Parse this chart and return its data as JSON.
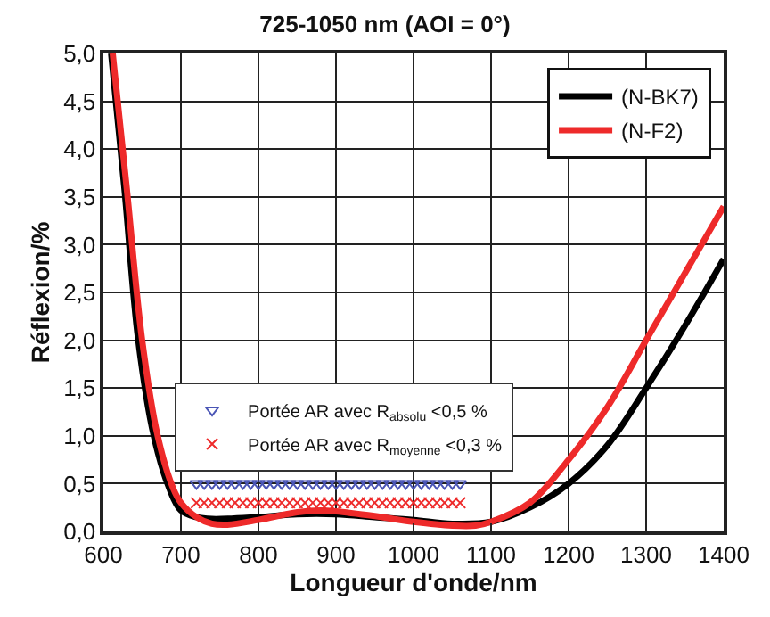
{
  "chart_data": {
    "type": "line",
    "title": "725-1050 nm (AOI = 0°)",
    "xlabel": "Longueur d'onde/nm",
    "ylabel": "Réflexion/%",
    "xlim": [
      600,
      1400
    ],
    "xticks": [
      600,
      700,
      800,
      900,
      1000,
      1100,
      1200,
      1300,
      1400
    ],
    "ylim": [
      0,
      5
    ],
    "yticks": [
      {
        "value": 0,
        "label": "0,0"
      },
      {
        "value": 0.5,
        "label": "0,5"
      },
      {
        "value": 1,
        "label": "1,0"
      },
      {
        "value": 1.5,
        "label": "1,5"
      },
      {
        "value": 2,
        "label": "2,0"
      },
      {
        "value": 2.5,
        "label": "2,5"
      },
      {
        "value": 3,
        "label": "3,0"
      },
      {
        "value": 3.5,
        "label": "3,5"
      },
      {
        "value": 4,
        "label": "4,0"
      },
      {
        "value": 4.5,
        "label": "4,5"
      },
      {
        "value": 5,
        "label": "5,0"
      }
    ],
    "grid": true,
    "legend": "top right",
    "series": [
      {
        "name": "(N-BK7)",
        "color": "#000000",
        "x": [
          610,
          627,
          645,
          665,
          685,
          700,
          720,
          740,
          800,
          850,
          900,
          950,
          1000,
          1050,
          1100,
          1150,
          1200,
          1250,
          1300,
          1350,
          1400
        ],
        "values": [
          5.0,
          3.6,
          2.0,
          1.0,
          0.45,
          0.22,
          0.15,
          0.13,
          0.15,
          0.18,
          0.18,
          0.15,
          0.12,
          0.08,
          0.1,
          0.25,
          0.5,
          0.9,
          1.5,
          2.15,
          2.85
        ]
      },
      {
        "name": "(N-F2)",
        "color": "#ee2a2a",
        "x": [
          612,
          630,
          650,
          670,
          690,
          700,
          720,
          740,
          760,
          800,
          850,
          880,
          900,
          950,
          1000,
          1050,
          1080,
          1100,
          1150,
          1200,
          1250,
          1300,
          1350,
          1400
        ],
        "values": [
          5.0,
          3.6,
          2.0,
          1.0,
          0.45,
          0.3,
          0.15,
          0.08,
          0.07,
          0.12,
          0.2,
          0.22,
          0.21,
          0.16,
          0.1,
          0.06,
          0.06,
          0.1,
          0.3,
          0.75,
          1.3,
          2.0,
          2.7,
          3.4
        ]
      },
      {
        "type": "scatter",
        "marker": "triangle",
        "name": "Portée AR avec R$_{absolu}$ <0,5 %",
        "color": "#4a55b5",
        "x": [
          720,
          730,
          740,
          750,
          760,
          770,
          780,
          790,
          800,
          810,
          820,
          830,
          840,
          850,
          860,
          870,
          880,
          890,
          900,
          910,
          920,
          930,
          940,
          950,
          960,
          970,
          980,
          990,
          1000,
          1010,
          1020,
          1030,
          1040,
          1050,
          1060
        ],
        "values": [
          0.5,
          0.5,
          0.5,
          0.5,
          0.5,
          0.5,
          0.5,
          0.5,
          0.5,
          0.5,
          0.5,
          0.5,
          0.5,
          0.5,
          0.5,
          0.5,
          0.5,
          0.5,
          0.5,
          0.5,
          0.5,
          0.5,
          0.5,
          0.5,
          0.5,
          0.5,
          0.5,
          0.5,
          0.5,
          0.5,
          0.5,
          0.5,
          0.5,
          0.5,
          0.5
        ]
      },
      {
        "type": "scatter",
        "marker": "cross",
        "name": "Portée AR avec R$_{moyenne}$ <0,3 %",
        "color": "#ee2a2a",
        "x": [
          720,
          730,
          740,
          750,
          760,
          770,
          780,
          790,
          800,
          810,
          820,
          830,
          840,
          850,
          860,
          870,
          880,
          890,
          900,
          910,
          920,
          930,
          940,
          950,
          960,
          970,
          980,
          990,
          1000,
          1010,
          1020,
          1030,
          1040,
          1050,
          1060
        ],
        "values": [
          0.3,
          0.3,
          0.3,
          0.3,
          0.3,
          0.3,
          0.3,
          0.3,
          0.3,
          0.3,
          0.3,
          0.3,
          0.3,
          0.3,
          0.3,
          0.3,
          0.3,
          0.3,
          0.3,
          0.3,
          0.3,
          0.3,
          0.3,
          0.3,
          0.3,
          0.3,
          0.3,
          0.3,
          0.3,
          0.3,
          0.3,
          0.3,
          0.3,
          0.3,
          0.3
        ]
      }
    ]
  }
}
